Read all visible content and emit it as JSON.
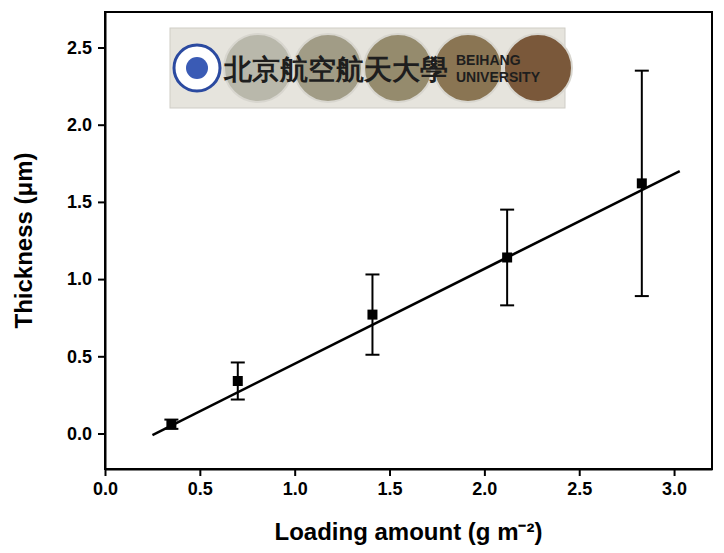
{
  "chart_data": {
    "type": "scatter",
    "x_label": "Loading amount (g m⁻²)",
    "y_label": "Thickness (μm)",
    "xlim": [
      0,
      3.2
    ],
    "ylim": [
      -0.23,
      2.73
    ],
    "xticks": [
      {
        "value": 0,
        "label": "0.0"
      },
      0.5,
      {
        "value": 1,
        "label": "1.0"
      },
      1.5,
      {
        "value": 2,
        "label": "2.0"
      },
      2.5,
      {
        "value": 3,
        "label": "3.0"
      }
    ],
    "yticks": [
      {
        "value": 0,
        "label": "0.0"
      },
      0.5,
      {
        "value": 1,
        "label": "1.0"
      },
      1.5,
      {
        "value": 2,
        "label": "2.0"
      },
      2.5
    ],
    "series": [
      {
        "type": "scatter",
        "marker": "square",
        "color": "#000000",
        "x": [
          0.35,
          0.7,
          1.41,
          2.12,
          2.83
        ],
        "values": [
          0.06,
          0.34,
          0.77,
          1.14,
          1.62
        ],
        "errors": [
          0.03,
          0.12,
          0.26,
          0.31,
          0.73
        ]
      },
      {
        "type": "line",
        "line_style": "solid",
        "color": "#000000",
        "x": [
          0.25,
          3.03
        ],
        "values": [
          -0.01,
          1.7
        ]
      }
    ],
    "annotations": [
      "北京航空航天大學",
      "BEIHANG",
      "UNIVERSITY"
    ]
  }
}
